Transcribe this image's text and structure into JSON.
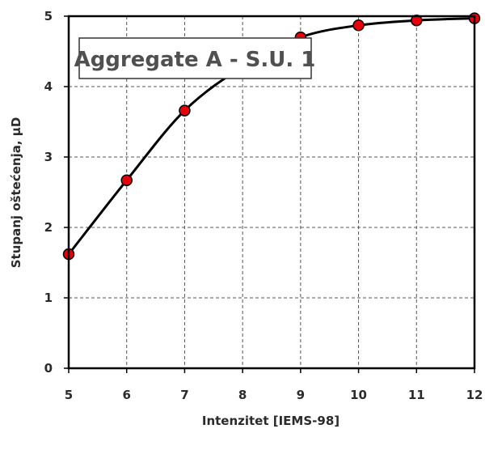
{
  "chart_data": {
    "type": "line",
    "title": "Aggregate A - S.U. 1",
    "xlabel": "Intenzitet [IEMS-98]",
    "ylabel": "Stupanj oštećenja, µD",
    "xlim": [
      5,
      12
    ],
    "ylim": [
      0,
      5
    ],
    "x_ticks": [
      "5",
      "6",
      "7",
      "8",
      "9",
      "10",
      "11",
      "12"
    ],
    "y_ticks": [
      "0",
      "1",
      "2",
      "3",
      "4",
      "5"
    ],
    "grid": true,
    "legend": "none",
    "series": [
      {
        "x": [
          5,
          6,
          7,
          8,
          9,
          10,
          11,
          12
        ],
        "y": [
          1.62,
          2.67,
          3.66,
          4.28,
          4.7,
          4.87,
          4.94,
          4.97
        ],
        "line_color": "#000000",
        "marker_color": "#e8000b"
      }
    ]
  }
}
